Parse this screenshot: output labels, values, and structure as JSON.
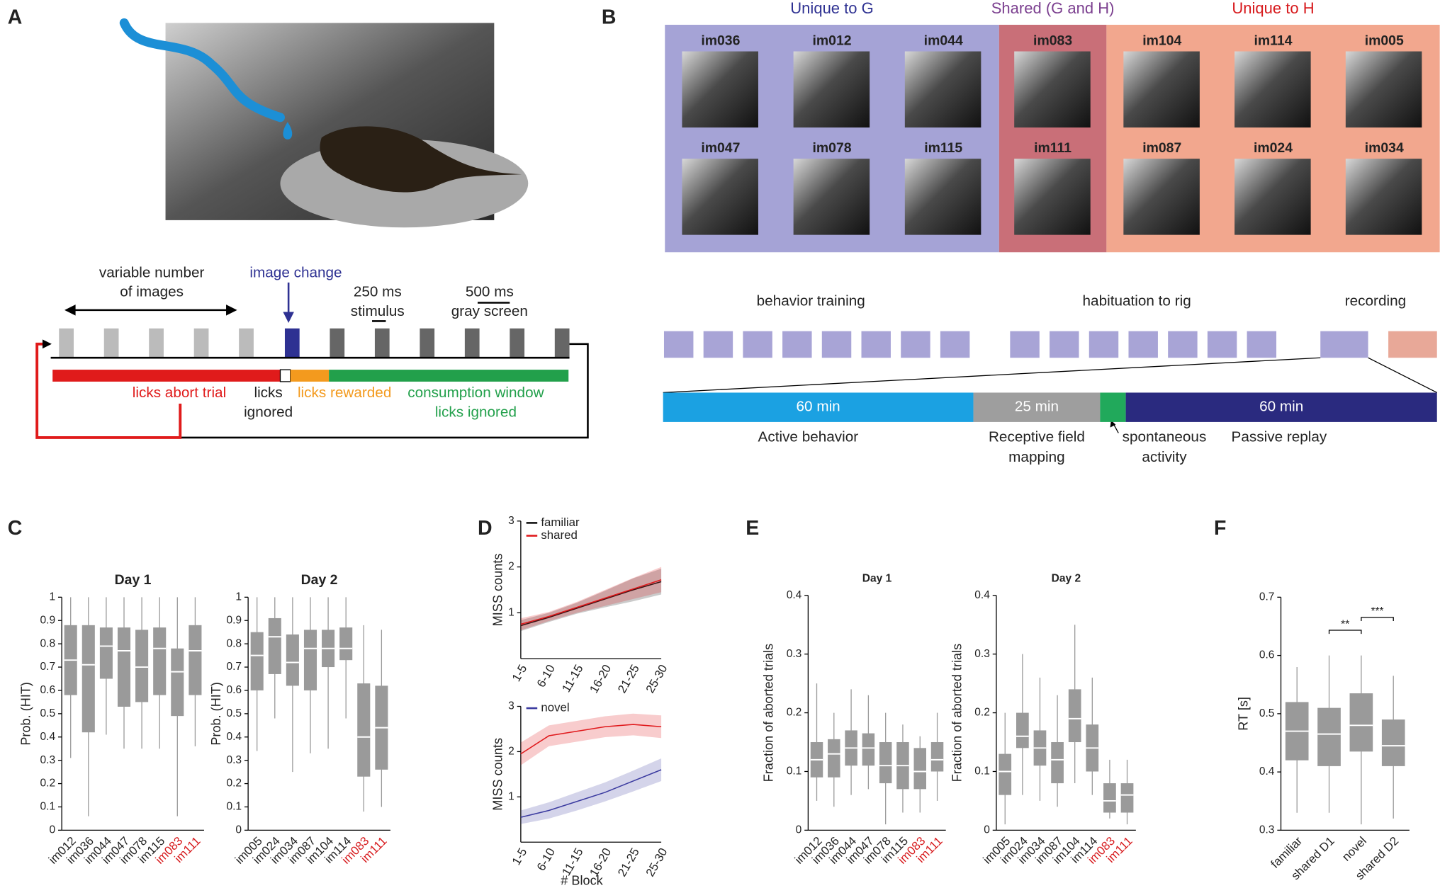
{
  "panel_labels": [
    "A",
    "B",
    "C",
    "D",
    "E",
    "F"
  ],
  "panel_a": {
    "variable": [
      "variable number",
      "of images"
    ],
    "image_change": "image change",
    "stimulus": [
      "250 ms",
      "stimulus"
    ],
    "gray": [
      "500 ms",
      "gray screen"
    ],
    "abort": "licks abort trial",
    "ignored": [
      "licks",
      "ignored"
    ],
    "rewarded": "licks rewarded",
    "consumption": [
      "consumption window",
      "licks ignored"
    ]
  },
  "panel_b": {
    "groups": [
      {
        "title": "Unique to G",
        "color": "#2e3192",
        "fill": "#a5a3d6",
        "images": [
          "im036",
          "im012",
          "im044",
          "im047",
          "im078",
          "im115"
        ]
      },
      {
        "title": "Shared (G and H)",
        "color": "#7b3f8f",
        "fill": "#c96f78",
        "images": [
          "im083",
          "im111"
        ]
      },
      {
        "title": "Unique to H",
        "color": "#d7191c",
        "fill": "#f2a78e",
        "images": [
          "im104",
          "im114",
          "im005",
          "im087",
          "im024",
          "im034"
        ]
      }
    ],
    "schedule": [
      "behavior training",
      "habituation to rig",
      "recording"
    ],
    "sessions": [
      {
        "duration": "60 min",
        "label": [
          "Active behavior"
        ],
        "color": "#1ba1e2"
      },
      {
        "duration": "25 min",
        "label": [
          "Receptive field",
          "mapping"
        ],
        "color": "#9e9e9e"
      },
      {
        "label": [
          "spontaneous",
          "activity"
        ],
        "color": "#21a95b"
      },
      {
        "duration": "60 min",
        "label": [
          "Passive replay"
        ],
        "color": "#2a2a7f"
      }
    ]
  },
  "chart_data": [
    {
      "type": "box",
      "title": "Day 1",
      "ylabel": "Prob. (HIT)",
      "color": "#9a9a9a",
      "categories": [
        "im012",
        "im036",
        "im044",
        "im047",
        "im078",
        "im115",
        "im083",
        "im111"
      ],
      "category_colors": [
        "#222",
        "#222",
        "#222",
        "#222",
        "#222",
        "#222",
        "#d7191c",
        "#d7191c"
      ],
      "boxes": [
        {
          "whislo": 0.31,
          "q1": 0.58,
          "med": 0.73,
          "q3": 0.88,
          "whishi": 1
        },
        {
          "whislo": 0.06,
          "q1": 0.42,
          "med": 0.71,
          "q3": 0.88,
          "whishi": 1
        },
        {
          "whislo": 0.41,
          "q1": 0.65,
          "med": 0.79,
          "q3": 0.87,
          "whishi": 1
        },
        {
          "whislo": 0.35,
          "q1": 0.53,
          "med": 0.77,
          "q3": 0.87,
          "whishi": 1
        },
        {
          "whislo": 0.35,
          "q1": 0.55,
          "med": 0.7,
          "q3": 0.86,
          "whishi": 1
        },
        {
          "whislo": 0.35,
          "q1": 0.58,
          "med": 0.78,
          "q3": 0.87,
          "whishi": 1
        },
        {
          "whislo": 0.06,
          "q1": 0.49,
          "med": 0.68,
          "q3": 0.78,
          "whishi": 1
        },
        {
          "whislo": 0.36,
          "q1": 0.58,
          "med": 0.77,
          "q3": 0.88,
          "whishi": 1
        }
      ],
      "ylim": [
        0,
        1
      ],
      "yticks": [
        0,
        0.1,
        0.2,
        0.3,
        0.4,
        0.5,
        0.6,
        0.7,
        0.8,
        0.9,
        1
      ]
    },
    {
      "type": "box",
      "title": "Day 2",
      "ylabel": "Prob. (HIT)",
      "color": "#9a9a9a",
      "categories": [
        "im005",
        "im024",
        "im034",
        "im087",
        "im104",
        "im114",
        "im083",
        "im111"
      ],
      "category_colors": [
        "#222",
        "#222",
        "#222",
        "#222",
        "#222",
        "#222",
        "#d7191c",
        "#d7191c"
      ],
      "boxes": [
        {
          "whislo": 0.34,
          "q1": 0.6,
          "med": 0.75,
          "q3": 0.85,
          "whishi": 1
        },
        {
          "whislo": 0.48,
          "q1": 0.67,
          "med": 0.83,
          "q3": 0.91,
          "whishi": 1
        },
        {
          "whislo": 0.25,
          "q1": 0.62,
          "med": 0.72,
          "q3": 0.84,
          "whishi": 1
        },
        {
          "whislo": 0.33,
          "q1": 0.6,
          "med": 0.78,
          "q3": 0.86,
          "whishi": 1
        },
        {
          "whislo": 0.35,
          "q1": 0.7,
          "med": 0.78,
          "q3": 0.86,
          "whishi": 1
        },
        {
          "whislo": 0.48,
          "q1": 0.73,
          "med": 0.78,
          "q3": 0.87,
          "whishi": 1
        },
        {
          "whislo": 0.08,
          "q1": 0.23,
          "med": 0.4,
          "q3": 0.63,
          "whishi": 0.88
        },
        {
          "whislo": 0.1,
          "q1": 0.26,
          "med": 0.44,
          "q3": 0.62,
          "whishi": 0.86
        }
      ],
      "ylim": [
        0,
        1
      ],
      "yticks": [
        0,
        0.1,
        0.2,
        0.3,
        0.4,
        0.5,
        0.6,
        0.7,
        0.8,
        0.9,
        1
      ]
    },
    {
      "type": "line",
      "ylabel": "MISS counts",
      "categories": [
        "1-5",
        "6-10",
        "11-15",
        "16-20",
        "21-25",
        "25-30"
      ],
      "series": [
        {
          "name": "familiar",
          "color": "#111111",
          "values": [
            0.72,
            0.9,
            1.1,
            1.3,
            1.5,
            1.68
          ],
          "lower": [
            0.6,
            0.8,
            0.98,
            1.12,
            1.25,
            1.4
          ],
          "upper": [
            0.84,
            1.0,
            1.22,
            1.48,
            1.75,
            1.96
          ]
        },
        {
          "name": "shared",
          "color": "#e0191c",
          "values": [
            0.75,
            0.92,
            1.12,
            1.32,
            1.52,
            1.72
          ],
          "lower": [
            0.62,
            0.82,
            1.0,
            1.15,
            1.3,
            1.45
          ],
          "upper": [
            0.88,
            1.02,
            1.24,
            1.5,
            1.76,
            2.0
          ]
        }
      ],
      "ylim": [
        0,
        3
      ],
      "yticks": [
        1,
        2,
        3
      ]
    },
    {
      "type": "line",
      "ylabel": "MISS counts",
      "xlabel": "# Block",
      "categories": [
        "1-5",
        "6-10",
        "11-15",
        "16-20",
        "21-25",
        "25-30"
      ],
      "series": [
        {
          "name": "novel",
          "color": "#3b3ba0",
          "values": [
            0.55,
            0.7,
            0.9,
            1.1,
            1.35,
            1.6
          ],
          "lower": [
            0.4,
            0.52,
            0.7,
            0.9,
            1.12,
            1.35
          ],
          "upper": [
            0.7,
            0.88,
            1.1,
            1.32,
            1.58,
            1.85
          ]
        },
        {
          "color": "#e0191c",
          "values": [
            1.95,
            2.35,
            2.45,
            2.55,
            2.6,
            2.55
          ],
          "lower": [
            1.7,
            2.12,
            2.22,
            2.32,
            2.36,
            2.3
          ],
          "upper": [
            2.2,
            2.58,
            2.68,
            2.78,
            2.84,
            2.8
          ]
        }
      ],
      "ylim": [
        0,
        3
      ],
      "yticks": [
        1,
        2,
        3
      ]
    },
    {
      "type": "box",
      "title": "Day 1",
      "ylabel": "Fraction of aborted trials",
      "color": "#9a9a9a",
      "categories": [
        "im012",
        "im036",
        "im044",
        "im047",
        "im078",
        "im115",
        "im083",
        "im111"
      ],
      "category_colors": [
        "#222",
        "#222",
        "#222",
        "#222",
        "#222",
        "#222",
        "#d7191c",
        "#d7191c"
      ],
      "boxes": [
        {
          "whislo": 0.05,
          "q1": 0.09,
          "med": 0.12,
          "q3": 0.15,
          "whishi": 0.25
        },
        {
          "whislo": 0.04,
          "q1": 0.09,
          "med": 0.13,
          "q3": 0.155,
          "whishi": 0.2
        },
        {
          "whislo": 0.06,
          "q1": 0.11,
          "med": 0.14,
          "q3": 0.17,
          "whishi": 0.24
        },
        {
          "whislo": 0.07,
          "q1": 0.11,
          "med": 0.14,
          "q3": 0.165,
          "whishi": 0.23
        },
        {
          "whislo": 0.01,
          "q1": 0.08,
          "med": 0.11,
          "q3": 0.15,
          "whishi": 0.2
        },
        {
          "whislo": 0.03,
          "q1": 0.07,
          "med": 0.11,
          "q3": 0.15,
          "whishi": 0.18
        },
        {
          "whislo": 0.03,
          "q1": 0.07,
          "med": 0.1,
          "q3": 0.14,
          "whishi": 0.16
        },
        {
          "whislo": 0.05,
          "q1": 0.1,
          "med": 0.12,
          "q3": 0.15,
          "whishi": 0.2
        }
      ],
      "ylim": [
        0,
        0.4
      ],
      "yticks": [
        0,
        0.1,
        0.2,
        0.3,
        0.4
      ]
    },
    {
      "type": "box",
      "title": "Day 2",
      "ylabel": "Fraction of aborted trials",
      "color": "#9a9a9a",
      "categories": [
        "im005",
        "im024",
        "im034",
        "im087",
        "im104",
        "im114",
        "im083",
        "im111"
      ],
      "category_colors": [
        "#222",
        "#222",
        "#222",
        "#222",
        "#222",
        "#222",
        "#d7191c",
        "#d7191c"
      ],
      "boxes": [
        {
          "whislo": 0.01,
          "q1": 0.06,
          "med": 0.1,
          "q3": 0.13,
          "whishi": 0.2
        },
        {
          "whislo": 0.06,
          "q1": 0.14,
          "med": 0.16,
          "q3": 0.2,
          "whishi": 0.3
        },
        {
          "whislo": 0.05,
          "q1": 0.11,
          "med": 0.14,
          "q3": 0.17,
          "whishi": 0.26
        },
        {
          "whislo": 0.04,
          "q1": 0.08,
          "med": 0.12,
          "q3": 0.15,
          "whishi": 0.23
        },
        {
          "whislo": 0.08,
          "q1": 0.15,
          "med": 0.19,
          "q3": 0.24,
          "whishi": 0.35
        },
        {
          "whislo": 0.06,
          "q1": 0.1,
          "med": 0.14,
          "q3": 0.18,
          "whishi": 0.26
        },
        {
          "whislo": 0.02,
          "q1": 0.03,
          "med": 0.05,
          "q3": 0.08,
          "whishi": 0.12
        },
        {
          "whislo": 0.01,
          "q1": 0.03,
          "med": 0.06,
          "q3": 0.08,
          "whishi": 0.12
        }
      ],
      "ylim": [
        0,
        0.4
      ],
      "yticks": [
        0,
        0.1,
        0.2,
        0.3,
        0.4
      ]
    },
    {
      "type": "box",
      "ylabel": "RT [s]",
      "color": "#9a9a9a",
      "categories": [
        "familiar",
        "shared D1",
        "novel",
        "shared D2"
      ],
      "category_colors": [
        "#222",
        "#222",
        "#222",
        "#222"
      ],
      "boxes": [
        {
          "whislo": 0.33,
          "q1": 0.42,
          "med": 0.47,
          "q3": 0.52,
          "whishi": 0.58
        },
        {
          "whislo": 0.33,
          "q1": 0.41,
          "med": 0.465,
          "q3": 0.51,
          "whishi": 0.6
        },
        {
          "whislo": 0.31,
          "q1": 0.435,
          "med": 0.48,
          "q3": 0.535,
          "whishi": 0.6
        },
        {
          "whislo": 0.32,
          "q1": 0.41,
          "med": 0.445,
          "q3": 0.49,
          "whishi": 0.565
        }
      ],
      "annotations": [
        "**",
        "***"
      ],
      "ylim": [
        0.3,
        0.7
      ],
      "yticks": [
        0.3,
        0.4,
        0.5,
        0.6,
        0.7
      ]
    }
  ]
}
